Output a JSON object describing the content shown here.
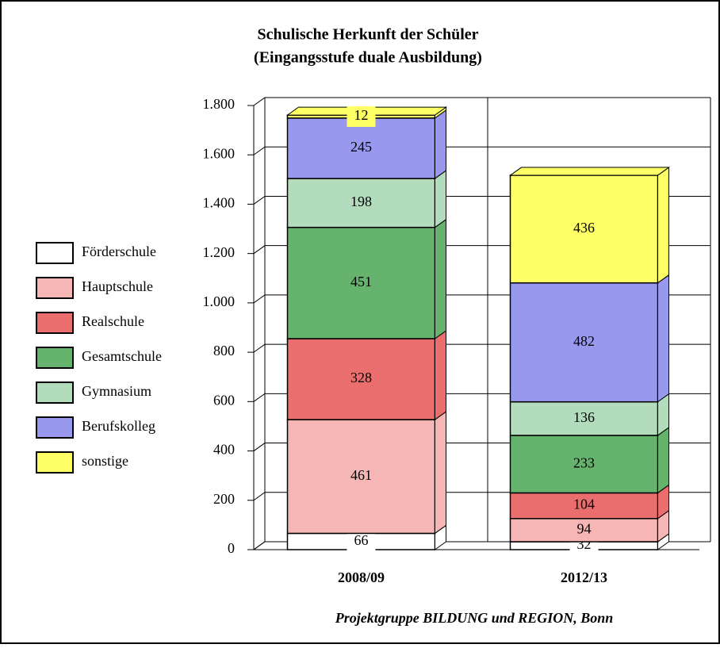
{
  "chart_data": {
    "type": "bar",
    "stacked": true,
    "title": "Schulische Herkunft der Schüler",
    "subtitle": "(Eingangsstufe duale Ausbildung)",
    "source": "Projektgruppe BILDUNG und REGION, Bonn",
    "categories": [
      "2008/09",
      "2012/13"
    ],
    "series": [
      {
        "name": "Förderschule",
        "color": "#ffffff",
        "values": [
          66,
          32
        ]
      },
      {
        "name": "Hauptschule",
        "color": "#f7b6b6",
        "values": [
          461,
          94
        ]
      },
      {
        "name": "Realschule",
        "color": "#ea6e6e",
        "values": [
          328,
          104
        ]
      },
      {
        "name": "Gesamtschule",
        "color": "#66b36e",
        "values": [
          451,
          233
        ]
      },
      {
        "name": "Gymnasium",
        "color": "#b3dcbd",
        "values": [
          198,
          136
        ]
      },
      {
        "name": "Berufskolleg",
        "color": "#9898ee",
        "values": [
          245,
          482
        ]
      },
      {
        "name": "sonstige",
        "color": "#ffff66",
        "values": [
          12,
          436
        ]
      }
    ],
    "ylim": [
      0,
      1800
    ],
    "yticks": [
      0,
      200,
      400,
      600,
      800,
      {
        "value": 1000,
        "label": "1.000"
      },
      {
        "value": 1200,
        "label": "1.200"
      },
      {
        "value": 1400,
        "label": "1.400"
      },
      {
        "value": 1600,
        "label": "1.600"
      },
      {
        "value": 1800,
        "label": "1.800"
      }
    ],
    "grid": true,
    "legend": "left"
  }
}
